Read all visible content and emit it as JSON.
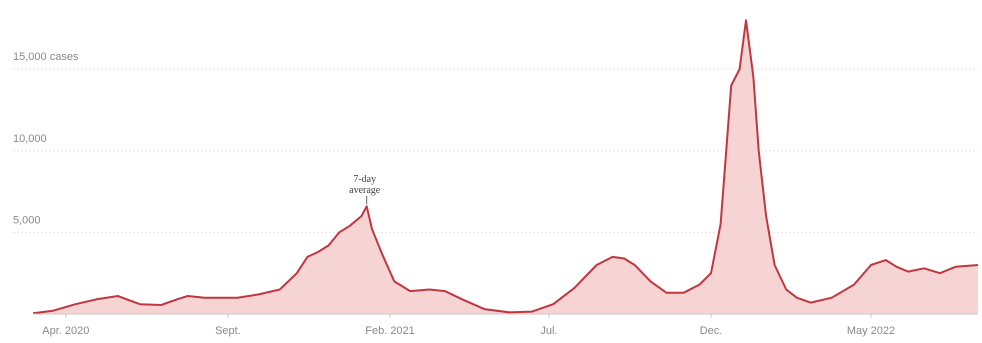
{
  "chart_data": {
    "type": "area",
    "title": "",
    "xlabel": "",
    "ylabel": "",
    "ylim": [
      0,
      18500
    ],
    "xlim": [
      "2020-03-01",
      "2022-08-10"
    ],
    "y_ticks": [
      {
        "value": 15000,
        "label": "15,000 cases"
      },
      {
        "value": 10000,
        "label": "10,000"
      },
      {
        "value": 5000,
        "label": "5,000"
      }
    ],
    "x_ticks": [
      {
        "date": "2020-04-01",
        "label": "Apr. 2020"
      },
      {
        "date": "2020-09-01",
        "label": "Sept."
      },
      {
        "date": "2021-02-01",
        "label": "Feb. 2021"
      },
      {
        "date": "2021-07-01",
        "label": "Jul."
      },
      {
        "date": "2021-12-01",
        "label": "Dec."
      },
      {
        "date": "2022-05-01",
        "label": "May 2022"
      }
    ],
    "annotation": {
      "lines": [
        "7-day",
        "average"
      ],
      "date": "2021-01-10",
      "value": 6600
    },
    "grid": true,
    "colors": {
      "line": "#c0373f",
      "fill": "#f6d4d4",
      "grid": "#e2e2e2",
      "tick_text": "#8a8a8a"
    },
    "series": [
      {
        "x": [
          "2020-03-01",
          "2020-03-20",
          "2020-04-10",
          "2020-04-30",
          "2020-05-20",
          "2020-06-10",
          "2020-06-30",
          "2020-07-15",
          "2020-07-25",
          "2020-08-10",
          "2020-08-25",
          "2020-09-10",
          "2020-09-30",
          "2020-10-20",
          "2020-11-05",
          "2020-11-15",
          "2020-11-25",
          "2020-12-05",
          "2020-12-15",
          "2020-12-25",
          "2021-01-05",
          "2021-01-10",
          "2021-01-15",
          "2021-01-25",
          "2021-02-05",
          "2021-02-20",
          "2021-03-10",
          "2021-03-25",
          "2021-04-10",
          "2021-05-01",
          "2021-05-25",
          "2021-06-15",
          "2021-07-05",
          "2021-07-25",
          "2021-08-15",
          "2021-08-30",
          "2021-09-10",
          "2021-09-20",
          "2021-10-05",
          "2021-10-20",
          "2021-11-05",
          "2021-11-20",
          "2021-12-01",
          "2021-12-10",
          "2021-12-20",
          "2021-12-28",
          "2022-01-03",
          "2022-01-10",
          "2022-01-15",
          "2022-01-22",
          "2022-01-30",
          "2022-02-10",
          "2022-02-20",
          "2022-03-05",
          "2022-03-25",
          "2022-04-15",
          "2022-05-01",
          "2022-05-15",
          "2022-05-25",
          "2022-06-05",
          "2022-06-20",
          "2022-07-05",
          "2022-07-20",
          "2022-08-10"
        ],
        "values": [
          50,
          200,
          600,
          900,
          1100,
          600,
          550,
          900,
          1100,
          1000,
          1000,
          1000,
          1200,
          1500,
          2500,
          3500,
          3800,
          4200,
          5000,
          5400,
          6000,
          6600,
          5200,
          3600,
          2000,
          1400,
          1500,
          1400,
          900,
          300,
          100,
          150,
          600,
          1600,
          3000,
          3500,
          3400,
          3000,
          2000,
          1300,
          1300,
          1800,
          2500,
          5500,
          14000,
          15000,
          18000,
          14500,
          10000,
          6000,
          3000,
          1500,
          1000,
          700,
          1000,
          1800,
          3000,
          3300,
          2900,
          2600,
          2800,
          2500,
          2900,
          3000
        ]
      }
    ]
  }
}
